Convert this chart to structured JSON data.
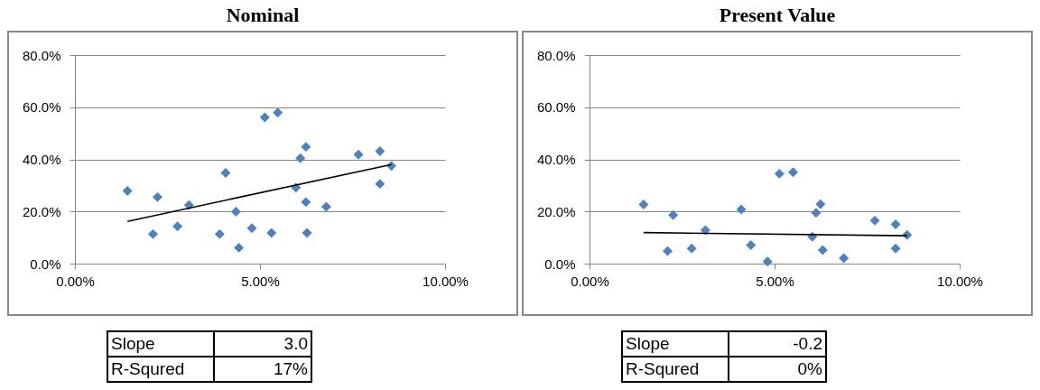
{
  "chart_data": [
    {
      "type": "scatter",
      "title": "Nominal",
      "grid": "y",
      "xlim": [
        0,
        10
      ],
      "ylim": [
        0,
        80
      ],
      "xticks": [
        {
          "value": 0,
          "label": "0.00%"
        },
        {
          "value": 5,
          "label": "5.00%"
        },
        {
          "value": 10,
          "label": "10.00%"
        }
      ],
      "yticks": [
        {
          "value": 0,
          "label": "0.0%"
        },
        {
          "value": 20,
          "label": "20.0%"
        },
        {
          "value": 40,
          "label": "40.0%"
        },
        {
          "value": 60,
          "label": "60.0%"
        },
        {
          "value": 80,
          "label": "80.0%"
        }
      ],
      "series": [
        {
          "color": "#4f81bd",
          "marker": "diamond",
          "x": [
            1.42,
            2.23,
            2.11,
            2.77,
            3.08,
            4.07,
            3.91,
            4.35,
            4.43,
            4.78,
            5.13,
            5.48,
            5.31,
            6.24,
            6.09,
            5.97,
            6.24,
            6.27,
            6.79,
            7.66,
            8.24,
            8.24,
            8.55
          ],
          "values": [
            27.9,
            25.5,
            11.3,
            14.3,
            22.4,
            34.8,
            11.3,
            19.9,
            6.1,
            13.6,
            56.1,
            57.9,
            11.8,
            44.8,
            40.4,
            29.2,
            23.6,
            11.8,
            21.8,
            41.8,
            43.1,
            30.6,
            37.5
          ]
        },
        {
          "type": "line",
          "marker": "none",
          "color": "#000000",
          "x": [
            1.42,
            8.55
          ],
          "values": [
            16.2,
            38.0
          ]
        }
      ],
      "annotations": [
        "Slope",
        "3.0",
        "R-Squred",
        "17%"
      ]
    },
    {
      "type": "scatter",
      "title": "Present Value",
      "grid": "y",
      "xlim": [
        0,
        10
      ],
      "ylim": [
        0,
        80
      ],
      "xticks": [
        {
          "value": 0,
          "label": "0.00%"
        },
        {
          "value": 5,
          "label": "5.00%"
        },
        {
          "value": 10,
          "label": "10.00%"
        }
      ],
      "yticks": [
        {
          "value": 0,
          "label": "0.0%"
        },
        {
          "value": 20,
          "label": "20.0%"
        },
        {
          "value": 40,
          "label": "40.0%"
        },
        {
          "value": 60,
          "label": "60.0%"
        },
        {
          "value": 80,
          "label": "80.0%"
        }
      ],
      "series": [
        {
          "color": "#4f81bd",
          "marker": "diamond",
          "x": [
            1.46,
            2.26,
            2.11,
            2.76,
            3.13,
            4.1,
            4.36,
            4.81,
            5.13,
            5.5,
            6.24,
            6.12,
            6.02,
            6.3,
            6.87,
            7.71,
            8.27,
            8.27,
            8.58
          ],
          "values": [
            22.7,
            18.6,
            4.8,
            5.8,
            12.8,
            20.8,
            7.1,
            0.8,
            34.5,
            35.1,
            22.8,
            19.5,
            10.3,
            5.2,
            2.1,
            16.5,
            15.1,
            5.8,
            11.0
          ]
        },
        {
          "type": "line",
          "marker": "none",
          "color": "#000000",
          "x": [
            1.46,
            8.58
          ],
          "values": [
            11.9,
            10.7
          ]
        }
      ],
      "annotations": [
        "Slope",
        "-0.2",
        "R-Squred",
        "0%"
      ]
    }
  ]
}
